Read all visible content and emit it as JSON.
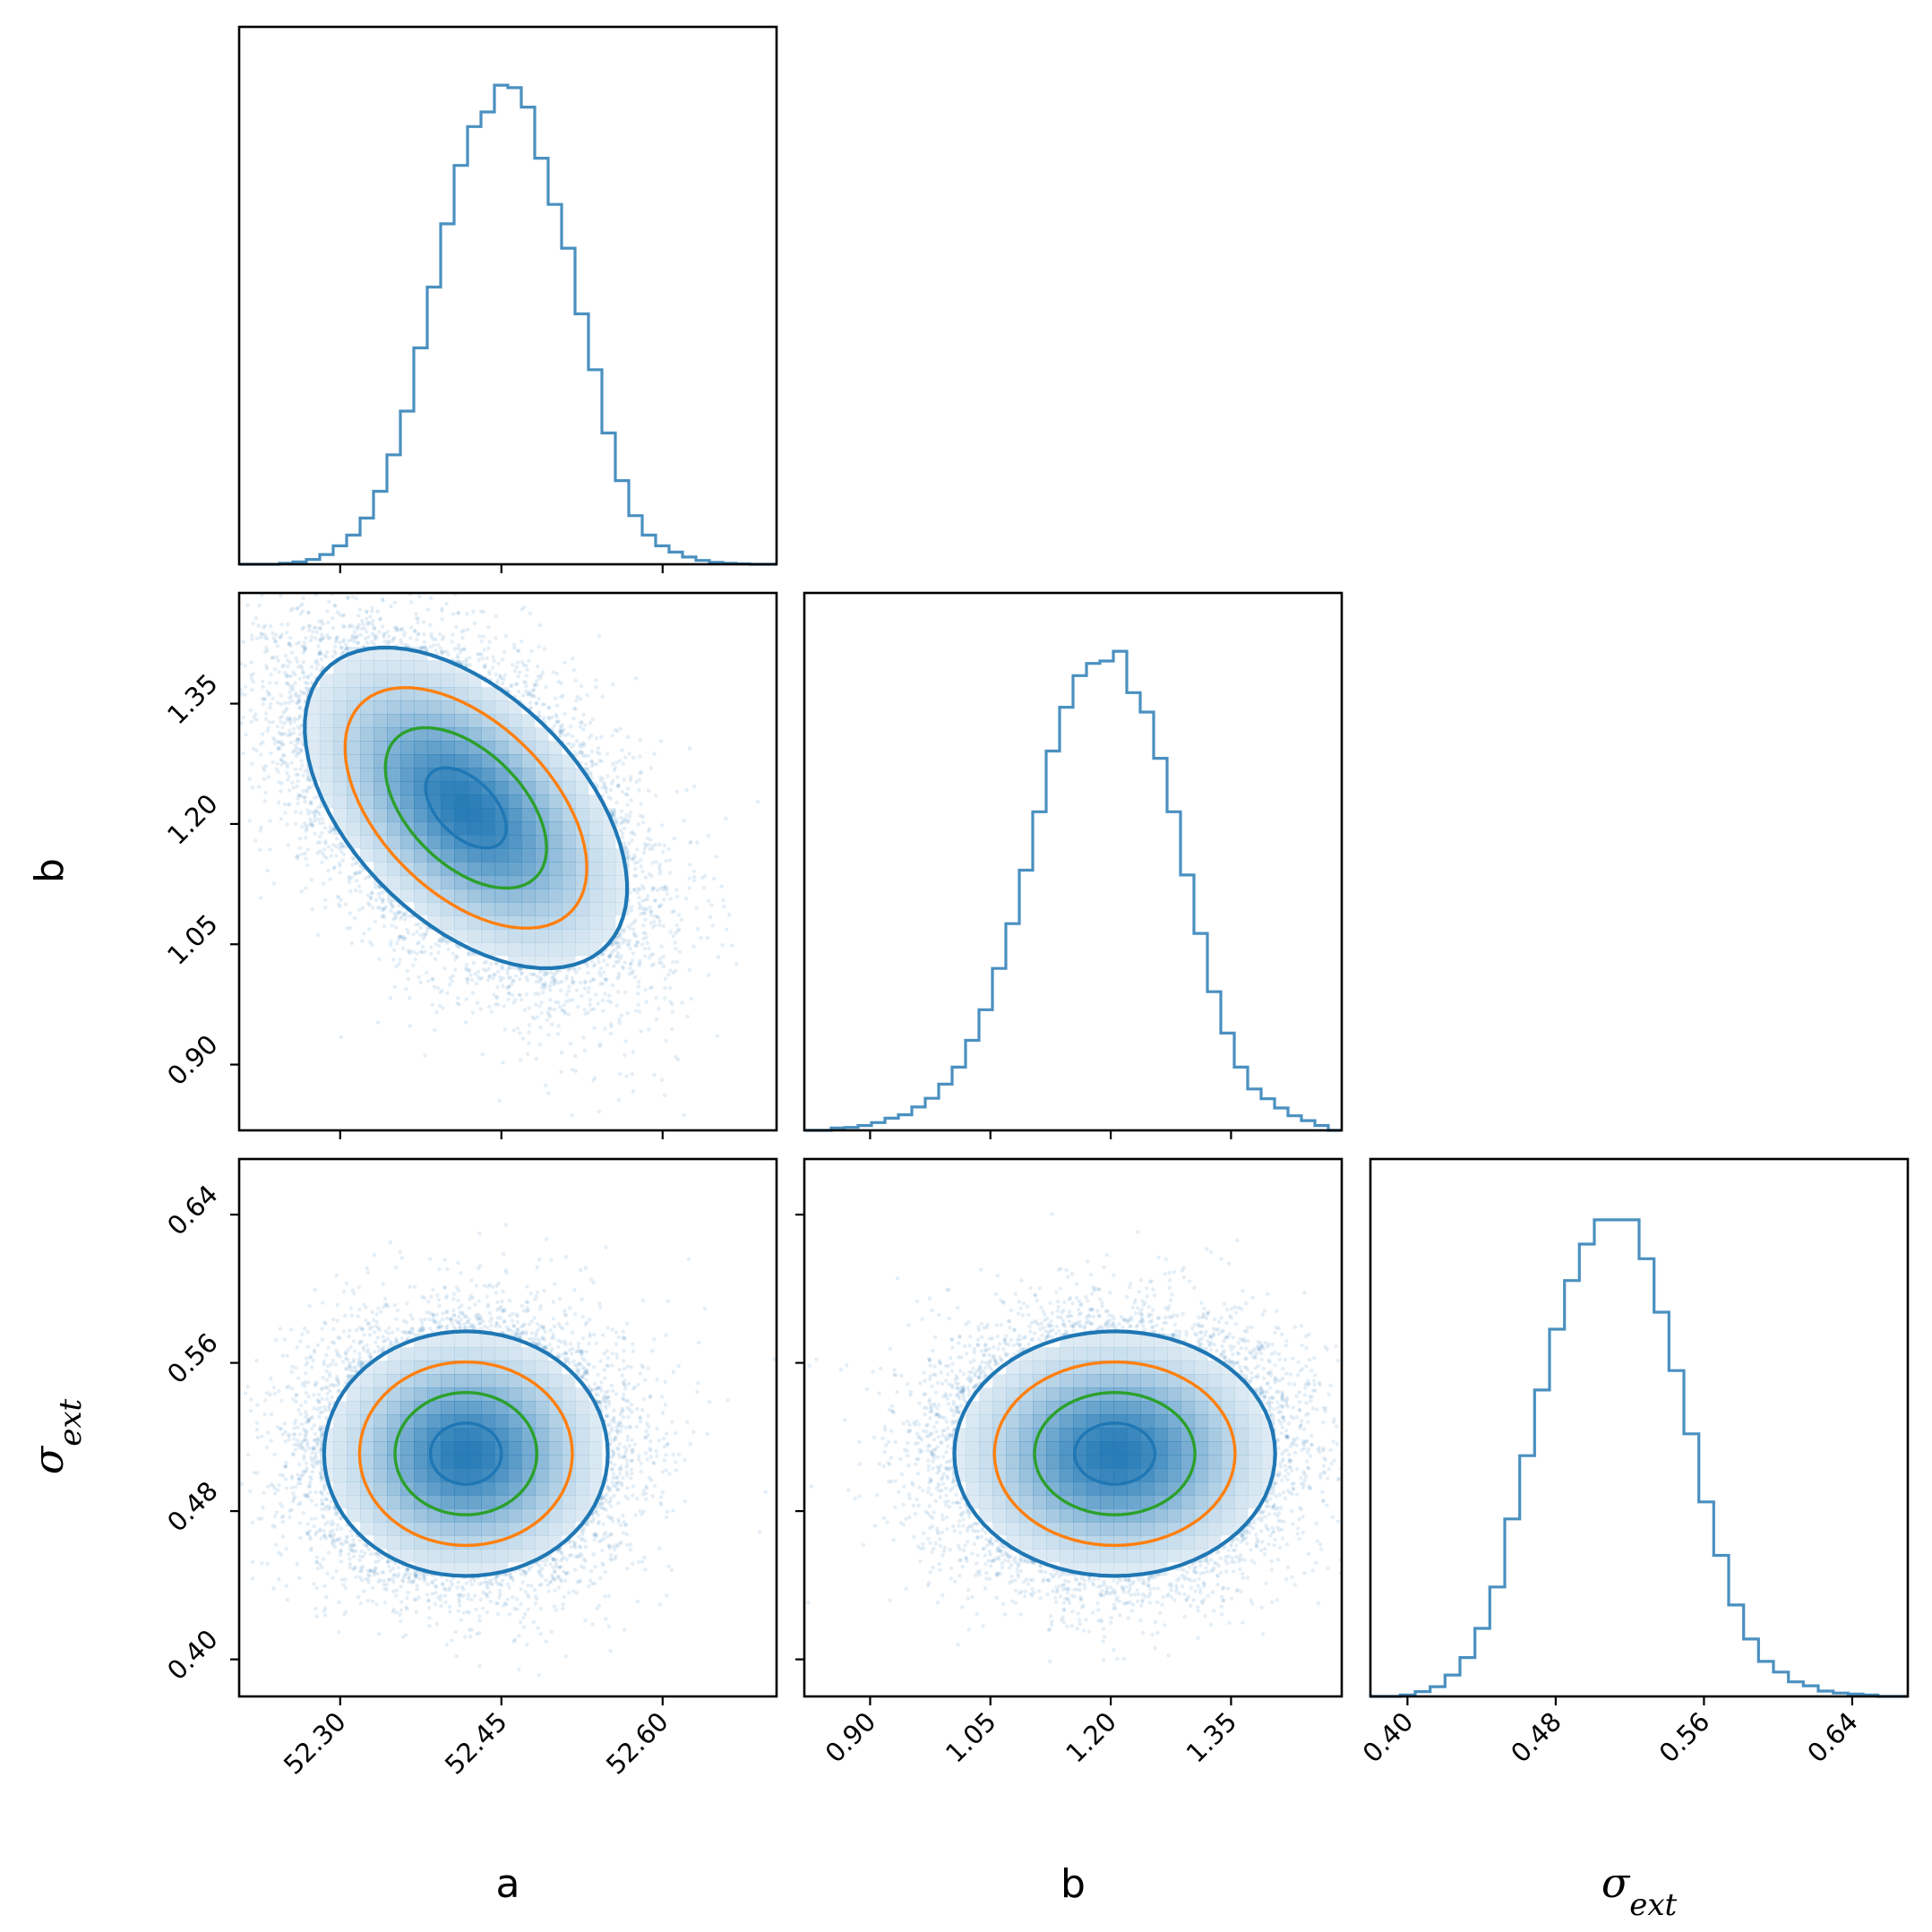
{
  "chart_data": {
    "type": "corner",
    "parameters": [
      {
        "key": "a",
        "label": "a",
        "italic": false,
        "range": [
          52.206,
          52.706
        ],
        "ticks": [
          "52.30",
          "52.45",
          "52.60"
        ]
      },
      {
        "key": "b",
        "label": "b",
        "italic": false,
        "range": [
          0.818,
          1.488
        ],
        "ticks": [
          "0.90",
          "1.05",
          "1.20",
          "1.35"
        ]
      },
      {
        "key": "sigma_ext",
        "label": "σ",
        "label_sub": "ext",
        "italic": true,
        "range": [
          0.38,
          0.67
        ],
        "ticks": [
          "0.40",
          "0.48",
          "0.56",
          "0.64"
        ]
      }
    ],
    "histograms": [
      {
        "parameter": "a",
        "bin_edges_range": [
          52.206,
          52.706
        ],
        "counts": [
          0.0,
          0.0,
          0.0,
          0.002,
          0.005,
          0.01,
          0.02,
          0.038,
          0.06,
          0.095,
          0.15,
          0.225,
          0.315,
          0.445,
          0.57,
          0.7,
          0.82,
          0.9,
          0.93,
          0.985,
          0.98,
          0.94,
          0.835,
          0.74,
          0.65,
          0.515,
          0.4,
          0.27,
          0.172,
          0.1,
          0.06,
          0.038,
          0.025,
          0.015,
          0.008,
          0.004,
          0.002,
          0.001,
          0.0,
          0.0
        ]
      },
      {
        "parameter": "b",
        "bin_edges_range": [
          0.818,
          1.488
        ],
        "counts": [
          0.0,
          0.0,
          0.005,
          0.006,
          0.01,
          0.016,
          0.025,
          0.032,
          0.048,
          0.066,
          0.095,
          0.13,
          0.185,
          0.248,
          0.333,
          0.425,
          0.535,
          0.655,
          0.78,
          0.87,
          0.935,
          0.96,
          0.965,
          0.985,
          0.9,
          0.86,
          0.765,
          0.655,
          0.525,
          0.405,
          0.285,
          0.2,
          0.13,
          0.085,
          0.065,
          0.046,
          0.03,
          0.02,
          0.01,
          0.0
        ]
      },
      {
        "parameter": "sigma_ext",
        "bin_edges_range": [
          0.38,
          0.67
        ],
        "counts": [
          0.0,
          0.0,
          0.003,
          0.01,
          0.02,
          0.044,
          0.08,
          0.14,
          0.225,
          0.365,
          0.495,
          0.63,
          0.755,
          0.855,
          0.93,
          0.98,
          0.98,
          0.98,
          0.9,
          0.79,
          0.67,
          0.54,
          0.4,
          0.29,
          0.188,
          0.118,
          0.072,
          0.05,
          0.03,
          0.022,
          0.011,
          0.007,
          0.005,
          0.003,
          0.0,
          0.0
        ]
      }
    ],
    "contour_pairs": [
      {
        "x": "a",
        "y": "b",
        "center": [
          52.417,
          1.22
        ],
        "std": [
          0.075,
          0.1
        ],
        "rho": -0.5
      },
      {
        "x": "a",
        "y": "sigma_ext",
        "center": [
          52.417,
          0.511
        ],
        "std": [
          0.066,
          0.033
        ],
        "rho": 0.0
      },
      {
        "x": "b",
        "y": "sigma_ext",
        "center": [
          1.205,
          0.511
        ],
        "std": [
          0.1,
          0.033
        ],
        "rho": 0.0
      }
    ],
    "contour_levels": [
      0.5,
      1.0,
      1.5,
      2.0
    ],
    "colors": {
      "hist_line": "#4a90c0",
      "scatter": "#1f77b4",
      "contour_level_1": "#1f77b4",
      "contour_level_2": "#2ca02c",
      "contour_level_3": "#ff7f0e",
      "contour_outer": "#1f77b4",
      "axes": "#000000"
    },
    "grid": false,
    "legend": "none"
  }
}
